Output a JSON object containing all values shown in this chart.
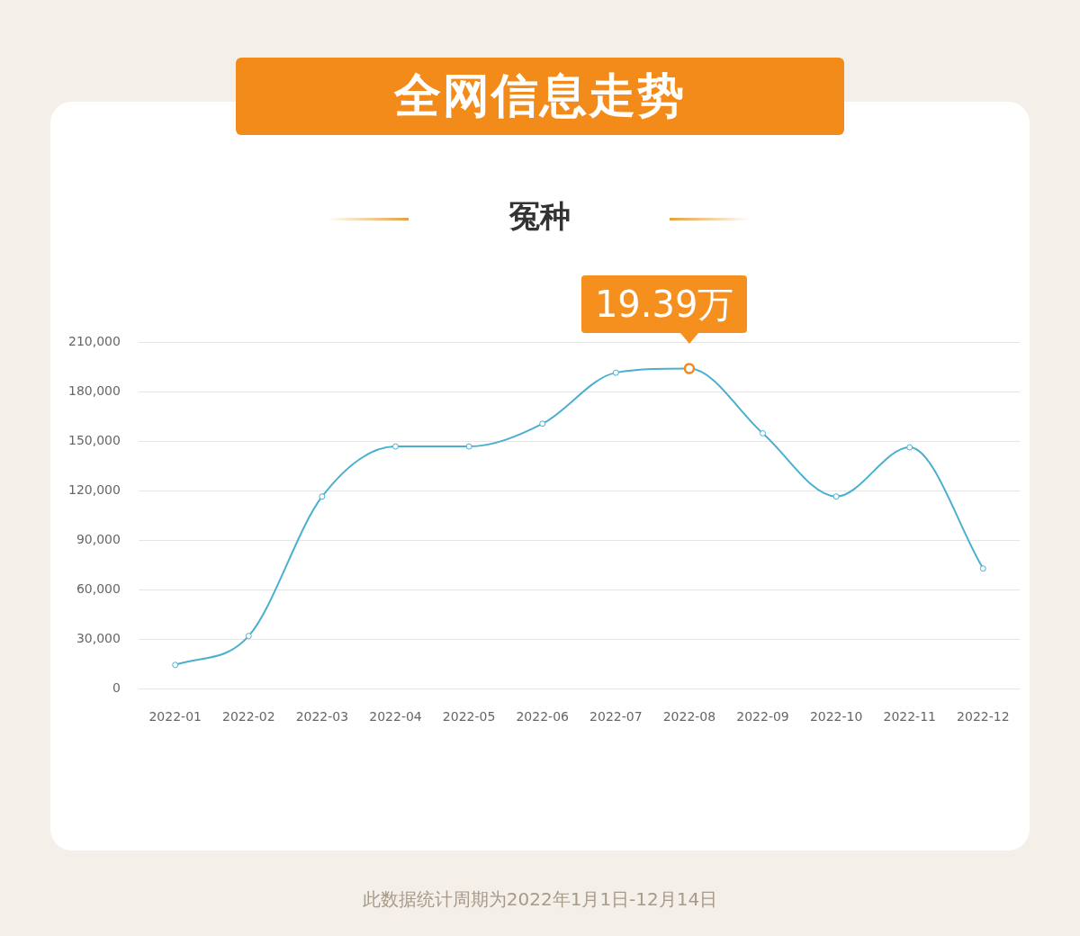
{
  "chart_data": {
    "type": "line",
    "title": "全网信息走势",
    "subtitle": "冤种",
    "categories": [
      "2022-01",
      "2022-02",
      "2022-03",
      "2022-04",
      "2022-05",
      "2022-06",
      "2022-07",
      "2022-08",
      "2022-09",
      "2022-10",
      "2022-11",
      "2022-12"
    ],
    "series": [
      {
        "color": "#4bb0cf",
        "values": [
          14400,
          31900,
          116400,
          146700,
          146700,
          160500,
          191400,
          193900,
          154700,
          116400,
          146200,
          72800
        ]
      }
    ],
    "ylim": [
      0,
      210000
    ],
    "yticks": [
      {
        "value": 0,
        "label": "0"
      },
      {
        "value": 30000,
        "label": "30,000"
      },
      {
        "value": 60000,
        "label": "60,000"
      },
      {
        "value": 90000,
        "label": "90,000"
      },
      {
        "value": 120000,
        "label": "120,000"
      },
      {
        "value": 150000,
        "label": "150,000"
      },
      {
        "value": 180000,
        "label": "180,000"
      },
      {
        "value": 210000,
        "label": "210,000"
      }
    ],
    "grid": "y",
    "legend": false,
    "marker": "circle",
    "line_style": "solid",
    "annotations": [
      {
        "text": "19.39万",
        "x": "2022-08",
        "y": 193900
      },
      "此数据统计周期为2022年1月1日-12月14日"
    ]
  }
}
